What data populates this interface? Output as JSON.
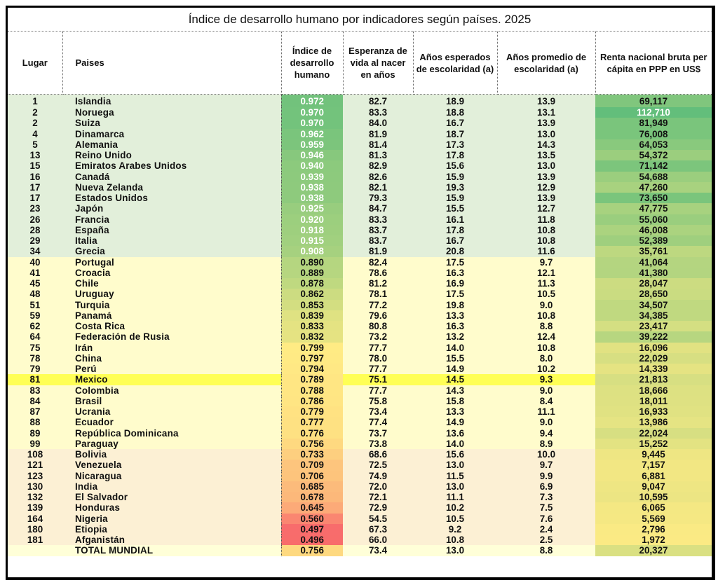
{
  "title": "Índice de desarrollo humano por indicadores según países. 2025",
  "headers": {
    "lugar": "Lugar",
    "paises": "Paises",
    "idh": "Índice de desarrollo humano",
    "esperanza": "Esperanza de vida al nacer en años",
    "anos_esperados": "Años esperados de escolaridad (a)",
    "anos_promedio": "Años promedio de escolaridad (a)",
    "renta": "Renta nacional bruta per cápita en PPP en US$"
  },
  "colors": {
    "group_high": "#e2efda",
    "group_mid": "#fffccc",
    "group_low": "#fcf0d4",
    "highlight": "#ffff55",
    "total_row": "#ffffd8"
  },
  "rows": [
    {
      "lugar": "1",
      "pais": "Islandia",
      "idh": "0.972",
      "esperanza": "82.7",
      "esperados": "18.9",
      "promedio": "13.9",
      "renta": "69,117",
      "group": "high"
    },
    {
      "lugar": "2",
      "pais": "Noruega",
      "idh": "0.970",
      "esperanza": "83.3",
      "esperados": "18.8",
      "promedio": "13.1",
      "renta": "112,710",
      "group": "high"
    },
    {
      "lugar": "2",
      "pais": "Suiza",
      "idh": "0.970",
      "esperanza": "84.0",
      "esperados": "16.7",
      "promedio": "13.9",
      "renta": "81,949",
      "group": "high"
    },
    {
      "lugar": "4",
      "pais": "Dinamarca",
      "idh": "0.962",
      "esperanza": "81.9",
      "esperados": "18.7",
      "promedio": "13.0",
      "renta": "76,008",
      "group": "high"
    },
    {
      "lugar": "5",
      "pais": "Alemania",
      "idh": "0.959",
      "esperanza": "81.4",
      "esperados": "17.3",
      "promedio": "14.3",
      "renta": "64,053",
      "group": "high"
    },
    {
      "lugar": "13",
      "pais": "Reino Unido",
      "idh": "0.946",
      "esperanza": "81.3",
      "esperados": "17.8",
      "promedio": "13.5",
      "renta": "54,372",
      "group": "high"
    },
    {
      "lugar": "15",
      "pais": "Emiratos Arabes Unidos",
      "idh": "0.940",
      "esperanza": "82.9",
      "esperados": "15.6",
      "promedio": "13.0",
      "renta": "71,142",
      "group": "high"
    },
    {
      "lugar": "16",
      "pais": "Canadá",
      "idh": "0.939",
      "esperanza": "82.6",
      "esperados": "15.9",
      "promedio": "13.9",
      "renta": "54,688",
      "group": "high"
    },
    {
      "lugar": "17",
      "pais": "Nueva Zelanda",
      "idh": "0.938",
      "esperanza": "82.1",
      "esperados": "19.3",
      "promedio": "12.9",
      "renta": "47,260",
      "group": "high"
    },
    {
      "lugar": "17",
      "pais": "Estados Unidos",
      "idh": "0.938",
      "esperanza": "79.3",
      "esperados": "15.9",
      "promedio": "13.9",
      "renta": "73,650",
      "group": "high"
    },
    {
      "lugar": "23",
      "pais": "Japón",
      "idh": "0.925",
      "esperanza": "84.7",
      "esperados": "15.5",
      "promedio": "12.7",
      "renta": "47,775",
      "group": "high"
    },
    {
      "lugar": "26",
      "pais": "Francia",
      "idh": "0.920",
      "esperanza": "83.3",
      "esperados": "16.1",
      "promedio": "11.8",
      "renta": "55,060",
      "group": "high"
    },
    {
      "lugar": "28",
      "pais": "España",
      "idh": "0.918",
      "esperanza": "83.7",
      "esperados": "17.8",
      "promedio": "10.8",
      "renta": "46,008",
      "group": "high"
    },
    {
      "lugar": "29",
      "pais": "Italia",
      "idh": "0.915",
      "esperanza": "83.7",
      "esperados": "16.7",
      "promedio": "10.8",
      "renta": "52,389",
      "group": "high"
    },
    {
      "lugar": "34",
      "pais": "Grecia",
      "idh": "0.908",
      "esperanza": "81.9",
      "esperados": "20.8",
      "promedio": "11.6",
      "renta": "35,761",
      "group": "high"
    },
    {
      "lugar": "40",
      "pais": "Portugal",
      "idh": "0.890",
      "esperanza": "82.4",
      "esperados": "17.5",
      "promedio": "9.7",
      "renta": "41,064",
      "group": "mid"
    },
    {
      "lugar": "41",
      "pais": "Croacia",
      "idh": "0.889",
      "esperanza": "78.6",
      "esperados": "16.3",
      "promedio": "12.1",
      "renta": "41,380",
      "group": "mid"
    },
    {
      "lugar": "45",
      "pais": "Chile",
      "idh": "0.878",
      "esperanza": "81.2",
      "esperados": "16.9",
      "promedio": "11.3",
      "renta": "28,047",
      "group": "mid"
    },
    {
      "lugar": "48",
      "pais": "Uruguay",
      "idh": "0.862",
      "esperanza": "78.1",
      "esperados": "17.5",
      "promedio": "10.5",
      "renta": "28,650",
      "group": "mid"
    },
    {
      "lugar": "51",
      "pais": "Turquia",
      "idh": "0.853",
      "esperanza": "77.2",
      "esperados": "19.8",
      "promedio": "9.0",
      "renta": "34,507",
      "group": "mid"
    },
    {
      "lugar": "59",
      "pais": "Panamá",
      "idh": "0.839",
      "esperanza": "79.6",
      "esperados": "13.3",
      "promedio": "10.8",
      "renta": "34,385",
      "group": "mid"
    },
    {
      "lugar": "62",
      "pais": "Costa Rica",
      "idh": "0.833",
      "esperanza": "80.8",
      "esperados": "16.3",
      "promedio": "8.8",
      "renta": "23,417",
      "group": "mid"
    },
    {
      "lugar": "64",
      "pais": "Federación de Rusia",
      "idh": "0.832",
      "esperanza": "73.2",
      "esperados": "13.2",
      "promedio": "12.4",
      "renta": "39,222",
      "group": "mid"
    },
    {
      "lugar": "75",
      "pais": "Irán",
      "idh": "0.799",
      "esperanza": "77.7",
      "esperados": "14.0",
      "promedio": "10.8",
      "renta": "16,096",
      "group": "mid"
    },
    {
      "lugar": "78",
      "pais": "China",
      "idh": "0.797",
      "esperanza": "78.0",
      "esperados": "15.5",
      "promedio": "8.0",
      "renta": "22,029",
      "group": "mid"
    },
    {
      "lugar": "79",
      "pais": "Perú",
      "idh": "0.794",
      "esperanza": "77.7",
      "esperados": "14.9",
      "promedio": "10.2",
      "renta": "14,339",
      "group": "mid"
    },
    {
      "lugar": "81",
      "pais": "Mexico",
      "idh": "0.789",
      "esperanza": "75.1",
      "esperados": "14.5",
      "promedio": "9.3",
      "renta": "21,813",
      "group": "highlight"
    },
    {
      "lugar": "83",
      "pais": "Colombia",
      "idh": "0.788",
      "esperanza": "77.7",
      "esperados": "14.3",
      "promedio": "9.0",
      "renta": "18,666",
      "group": "mid"
    },
    {
      "lugar": "84",
      "pais": "Brasil",
      "idh": "0.786",
      "esperanza": "75.8",
      "esperados": "15.8",
      "promedio": "8.4",
      "renta": "18,011",
      "group": "mid"
    },
    {
      "lugar": "87",
      "pais": "Ucrania",
      "idh": "0.779",
      "esperanza": "73.4",
      "esperados": "13.3",
      "promedio": "11.1",
      "renta": "16,933",
      "group": "mid"
    },
    {
      "lugar": "88",
      "pais": "Ecuador",
      "idh": "0.777",
      "esperanza": "77.4",
      "esperados": "14.9",
      "promedio": "9.0",
      "renta": "13,986",
      "group": "mid"
    },
    {
      "lugar": "89",
      "pais": "República Dominicana",
      "idh": "0.776",
      "esperanza": "73.7",
      "esperados": "13.6",
      "promedio": "9.4",
      "renta": "22,024",
      "group": "mid"
    },
    {
      "lugar": "99",
      "pais": "Paraguay",
      "idh": "0.756",
      "esperanza": "73.8",
      "esperados": "14.0",
      "promedio": "8.9",
      "renta": "15,252",
      "group": "mid"
    },
    {
      "lugar": "108",
      "pais": "Bolivia",
      "idh": "0.733",
      "esperanza": "68.6",
      "esperados": "15.6",
      "promedio": "10.0",
      "renta": "9,445",
      "group": "low"
    },
    {
      "lugar": "121",
      "pais": "Venezuela",
      "idh": "0.709",
      "esperanza": "72.5",
      "esperados": "13.0",
      "promedio": "9.7",
      "renta": "7,157",
      "group": "low"
    },
    {
      "lugar": "123",
      "pais": "Nicaragua",
      "idh": "0.706",
      "esperanza": "74.9",
      "esperados": "11.5",
      "promedio": "9.9",
      "renta": "6,881",
      "group": "low"
    },
    {
      "lugar": "130",
      "pais": "India",
      "idh": "0.685",
      "esperanza": "72.0",
      "esperados": "13.0",
      "promedio": "6.9",
      "renta": "9,047",
      "group": "low"
    },
    {
      "lugar": "132",
      "pais": "El Salvador",
      "idh": "0.678",
      "esperanza": "72.1",
      "esperados": "11.1",
      "promedio": "7.3",
      "renta": "10,595",
      "group": "low"
    },
    {
      "lugar": "139",
      "pais": "Honduras",
      "idh": "0.645",
      "esperanza": "72.9",
      "esperados": "10.2",
      "promedio": "7.5",
      "renta": "6,065",
      "group": "low"
    },
    {
      "lugar": "164",
      "pais": "Nigeria",
      "idh": "0.560",
      "esperanza": "54.5",
      "esperados": "10.5",
      "promedio": "7.6",
      "renta": "5,569",
      "group": "low"
    },
    {
      "lugar": "180",
      "pais": "Etiopia",
      "idh": "0.497",
      "esperanza": "67.3",
      "esperados": "9.2",
      "promedio": "2.4",
      "renta": "2,796",
      "group": "low"
    },
    {
      "lugar": "181",
      "pais": "Afganistán",
      "idh": "0.496",
      "esperanza": "66.0",
      "esperados": "10.8",
      "promedio": "2.5",
      "renta": "1,972",
      "group": "low"
    }
  ],
  "total": {
    "lugar": "",
    "pais": "TOTAL MUNDIAL",
    "idh": "0.756",
    "esperanza": "73.4",
    "esperados": "13.0",
    "promedio": "8.8",
    "renta": "20,327",
    "group": "total"
  }
}
